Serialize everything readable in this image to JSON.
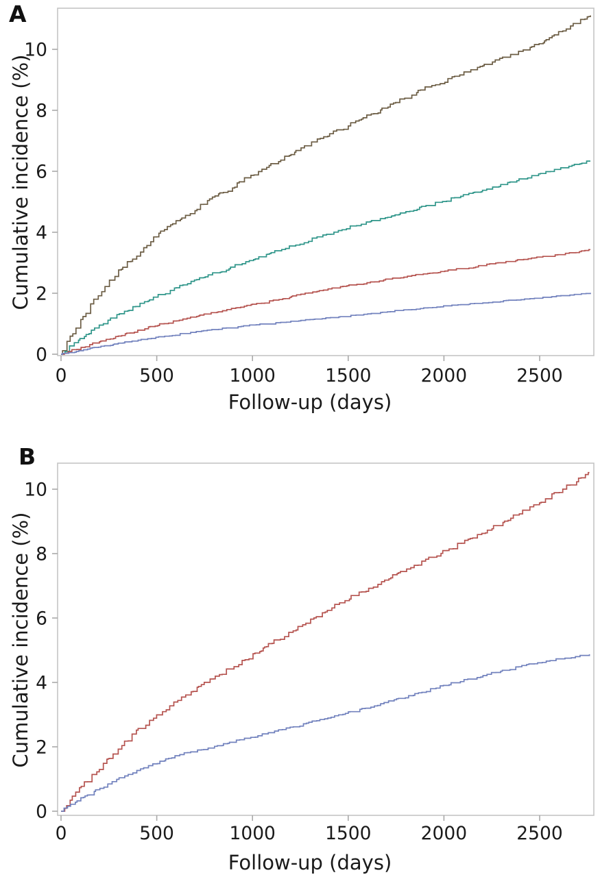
{
  "figure": {
    "background": "#ffffff",
    "text_color": "#1a1a1a",
    "frame_color": "#c4c4c4",
    "tick_color": "#a9a9a9"
  },
  "panel_a": {
    "label": "A",
    "ylabel": "Cumulative incidence (%)",
    "xlabel": "Follow-up (days)"
  },
  "panel_b": {
    "label": "B",
    "ylabel": "Cumulative incidence (%)",
    "xlabel": "Follow-up (days)"
  },
  "chart_data": [
    {
      "panel": "A",
      "type": "line",
      "subtype": "step-cumulative-incidence",
      "title": "",
      "xlabel": "Follow-up (days)",
      "ylabel": "Cumulative incidence (%)",
      "xlim": [
        0,
        2780
      ],
      "ylim": [
        0,
        11.35
      ],
      "x_ticks": [
        0,
        500,
        1000,
        1500,
        2000,
        2500
      ],
      "y_ticks": [
        0,
        2,
        4,
        6,
        8,
        10
      ],
      "grid": false,
      "legend": "none",
      "series": [
        {
          "name": "curve-brown",
          "color": "#6b5c43",
          "x": [
            0,
            60,
            120,
            200,
            300,
            400,
            500,
            620,
            750,
            900,
            1000,
            1150,
            1300,
            1500,
            1700,
            1900,
            2100,
            2300,
            2500,
            2650,
            2720,
            2765
          ],
          "y": [
            0,
            0.7,
            1.3,
            2.0,
            2.7,
            3.3,
            3.9,
            4.4,
            4.95,
            5.5,
            5.9,
            6.4,
            6.9,
            7.5,
            8.1,
            8.7,
            9.2,
            9.7,
            10.2,
            10.7,
            10.95,
            11.15
          ]
        },
        {
          "name": "curve-teal",
          "color": "#2e9589",
          "x": [
            0,
            60,
            120,
            200,
            300,
            400,
            500,
            650,
            800,
            1000,
            1200,
            1400,
            1500,
            1700,
            1900,
            2100,
            2300,
            2500,
            2650,
            2765
          ],
          "y": [
            0,
            0.35,
            0.6,
            0.95,
            1.3,
            1.6,
            1.9,
            2.3,
            2.65,
            3.1,
            3.55,
            3.95,
            4.15,
            4.5,
            4.85,
            5.2,
            5.55,
            5.9,
            6.15,
            6.35
          ]
        },
        {
          "name": "curve-red",
          "color": "#b5534f",
          "x": [
            0,
            100,
            250,
            500,
            750,
            1000,
            1250,
            1500,
            1750,
            2000,
            2250,
            2500,
            2650,
            2765
          ],
          "y": [
            0,
            0.22,
            0.5,
            0.95,
            1.3,
            1.62,
            1.95,
            2.25,
            2.5,
            2.72,
            2.95,
            3.18,
            3.3,
            3.42
          ]
        },
        {
          "name": "curve-blue",
          "color": "#7181bd",
          "x": [
            0,
            100,
            250,
            500,
            750,
            1000,
            1250,
            1500,
            1750,
            2000,
            2250,
            2500,
            2765
          ],
          "y": [
            0,
            0.12,
            0.3,
            0.55,
            0.77,
            0.95,
            1.1,
            1.25,
            1.42,
            1.57,
            1.7,
            1.85,
            2.0
          ]
        }
      ]
    },
    {
      "panel": "B",
      "type": "line",
      "subtype": "step-cumulative-incidence",
      "title": "",
      "xlabel": "Follow-up (days)",
      "ylabel": "Cumulative incidence (%)",
      "xlim": [
        0,
        2780
      ],
      "ylim": [
        0,
        10.8
      ],
      "x_ticks": [
        0,
        500,
        1000,
        1500,
        2000,
        2500
      ],
      "y_ticks": [
        0,
        2,
        4,
        6,
        8,
        10
      ],
      "grid": false,
      "legend": "none",
      "series": [
        {
          "name": "curve-red",
          "color": "#b5534f",
          "x": [
            0,
            60,
            120,
            200,
            300,
            400,
            500,
            650,
            800,
            1000,
            1150,
            1300,
            1500,
            1700,
            1900,
            2100,
            2300,
            2500,
            2650,
            2760
          ],
          "y": [
            0,
            0.45,
            0.85,
            1.35,
            1.95,
            2.5,
            2.95,
            3.6,
            4.15,
            4.85,
            5.4,
            5.95,
            6.6,
            7.2,
            7.8,
            8.35,
            8.95,
            9.6,
            10.1,
            10.5
          ]
        },
        {
          "name": "curve-blue",
          "color": "#7181bd",
          "x": [
            0,
            60,
            120,
            200,
            300,
            400,
            500,
            650,
            800,
            1000,
            1200,
            1400,
            1600,
            1800,
            2000,
            2200,
            2400,
            2600,
            2760
          ],
          "y": [
            0,
            0.25,
            0.45,
            0.7,
            1.0,
            1.25,
            1.5,
            1.8,
            2.0,
            2.3,
            2.6,
            2.9,
            3.2,
            3.55,
            3.9,
            4.2,
            4.5,
            4.72,
            4.85
          ]
        }
      ]
    }
  ]
}
